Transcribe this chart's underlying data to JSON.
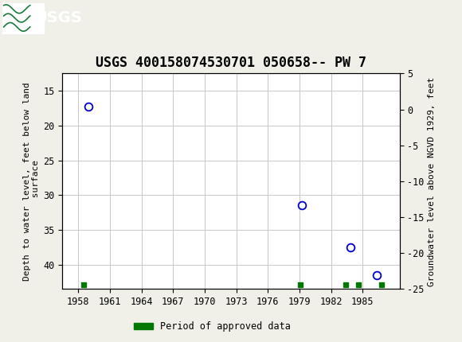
{
  "title": "USGS 400158074530701 050658-- PW 7",
  "ylabel_left": "Depth to water level, feet below land\n surface",
  "ylabel_right": "Groundwater level above NGVD 1929, feet",
  "header_color": "#1a7a3c",
  "header_text_color": "#ffffff",
  "background_color": "#f0f0e8",
  "plot_bg_color": "#ffffff",
  "grid_color": "#c8c8c8",
  "data_points_x": [
    1959.0,
    1979.2,
    1983.8,
    1986.3
  ],
  "data_points_y": [
    17.3,
    31.5,
    37.5,
    41.5
  ],
  "approved_periods_x": [
    1958.5,
    1979.1,
    1983.4,
    1984.6,
    1986.8
  ],
  "xlim": [
    1956.5,
    1988.5
  ],
  "ylim_left_bottom": 43.5,
  "ylim_left_top": 12.5,
  "ylim_right_top": 5,
  "ylim_right_bottom": -25,
  "xticks": [
    1958,
    1961,
    1964,
    1967,
    1970,
    1973,
    1976,
    1979,
    1982,
    1985
  ],
  "yticks_left": [
    15,
    20,
    25,
    30,
    35,
    40
  ],
  "yticks_right": [
    5,
    0,
    -5,
    -10,
    -15,
    -20,
    -25
  ],
  "marker_color": "#0000cc",
  "marker_facecolor": "#ffffff",
  "marker_size": 7,
  "approved_color": "#007700",
  "legend_label": "Period of approved data",
  "font_family": "monospace",
  "title_fontsize": 12,
  "label_fontsize": 8,
  "tick_fontsize": 8.5
}
